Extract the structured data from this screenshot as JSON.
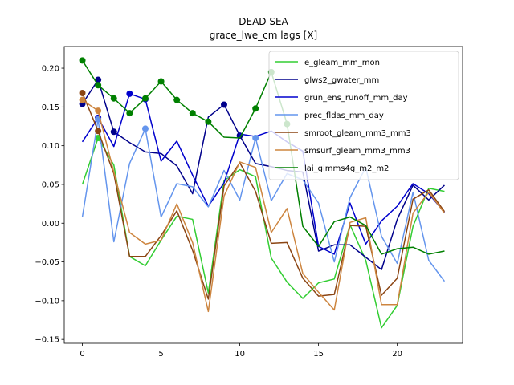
{
  "chart_data": {
    "type": "line",
    "title": "DEAD SEA",
    "subtitle": "grace_lwe_cm lags [X]",
    "xlabel": "",
    "ylabel": "",
    "xlim": [
      -1.15,
      24.15
    ],
    "ylim": [
      -0.155,
      0.228
    ],
    "xticks": [
      0,
      5,
      10,
      15,
      20
    ],
    "yticks": [
      -0.15,
      -0.1,
      -0.05,
      0.0,
      0.05,
      0.1,
      0.15,
      0.2
    ],
    "ytick_labels": [
      "−0.15",
      "−0.10",
      "−0.05",
      "0.00",
      "0.05",
      "0.10",
      "0.15",
      "0.20"
    ],
    "grid": false,
    "legend_position": "upper right",
    "x": [
      0,
      1,
      2,
      3,
      4,
      5,
      6,
      7,
      8,
      9,
      10,
      11,
      12,
      13,
      14,
      15,
      16,
      17,
      18,
      19,
      20,
      21,
      22,
      23
    ],
    "series": [
      {
        "name": "e_gleam_mm_mon",
        "color": "#32cd32",
        "values": [
          0.05,
          0.11,
          0.075,
          -0.043,
          -0.055,
          -0.022,
          0.009,
          0.005,
          -0.09,
          0.055,
          0.069,
          0.06,
          -0.045,
          -0.076,
          -0.097,
          -0.077,
          -0.072,
          -0.002,
          -0.048,
          -0.135,
          -0.106,
          -0.004,
          0.045,
          0.041
        ],
        "markers": [
          1
        ]
      },
      {
        "name": "glws2_gwater_mm",
        "color": "#00008b",
        "values": [
          0.154,
          0.185,
          0.118,
          0.104,
          0.092,
          0.09,
          0.074,
          0.038,
          0.137,
          0.153,
          0.113,
          0.077,
          0.073,
          0.068,
          0.066,
          -0.036,
          -0.028,
          -0.028,
          -0.044,
          -0.06,
          0.005,
          0.049,
          0.03,
          0.049
        ],
        "markers": [
          0,
          1,
          2,
          9,
          10
        ]
      },
      {
        "name": "grun_ens_runoff_mm_day",
        "color": "#0000cd",
        "values": [
          0.105,
          0.136,
          0.099,
          0.167,
          0.16,
          0.08,
          0.106,
          0.062,
          0.022,
          0.052,
          0.115,
          0.112,
          0.119,
          0.105,
          0.093,
          -0.03,
          -0.04,
          0.026,
          -0.027,
          0.003,
          0.022,
          0.051,
          0.038,
          0.014
        ],
        "markers": [
          1,
          3,
          4
        ]
      },
      {
        "name": "prec_fldas_mm_day",
        "color": "#6495ed",
        "values": [
          0.008,
          0.134,
          -0.024,
          0.077,
          0.122,
          0.008,
          0.051,
          0.047,
          0.021,
          0.068,
          0.03,
          0.11,
          0.029,
          0.064,
          0.056,
          0.026,
          -0.05,
          0.033,
          0.072,
          -0.017,
          -0.052,
          0.04,
          -0.048,
          -0.075
        ],
        "markers": [
          1,
          4,
          11
        ]
      },
      {
        "name": "smroot_gleam_mm3_mm3",
        "color": "#8b4513",
        "values": [
          0.168,
          0.119,
          0.064,
          -0.043,
          -0.043,
          -0.016,
          0.016,
          -0.035,
          -0.098,
          0.048,
          0.078,
          0.041,
          -0.026,
          -0.025,
          -0.071,
          -0.094,
          -0.092,
          -0.003,
          -0.004,
          -0.093,
          -0.071,
          0.031,
          0.043,
          0.015
        ],
        "markers": [
          0,
          1
        ]
      },
      {
        "name": "smsurf_gleam_mm3_mm3",
        "color": "#cd853f",
        "values": [
          0.159,
          0.145,
          0.066,
          -0.012,
          -0.027,
          -0.022,
          0.025,
          -0.025,
          -0.114,
          0.035,
          0.079,
          0.072,
          -0.012,
          0.019,
          -0.065,
          -0.089,
          -0.112,
          0.001,
          0.007,
          -0.105,
          -0.105,
          0.013,
          0.04,
          0.013
        ],
        "markers": [
          0,
          1
        ]
      },
      {
        "name": "lai_gimms4g_m2_m2",
        "color": "#008000",
        "values": [
          0.21,
          0.178,
          0.161,
          0.142,
          0.161,
          0.183,
          0.159,
          0.142,
          0.131,
          0.111,
          0.11,
          0.148,
          0.195,
          0.128,
          -0.004,
          -0.03,
          0.002,
          0.008,
          -0.003,
          -0.04,
          -0.033,
          -0.031,
          -0.04,
          -0.036
        ],
        "markers": [
          0,
          1,
          2,
          3,
          4,
          5,
          6,
          7,
          8,
          11,
          12,
          13
        ]
      }
    ]
  }
}
